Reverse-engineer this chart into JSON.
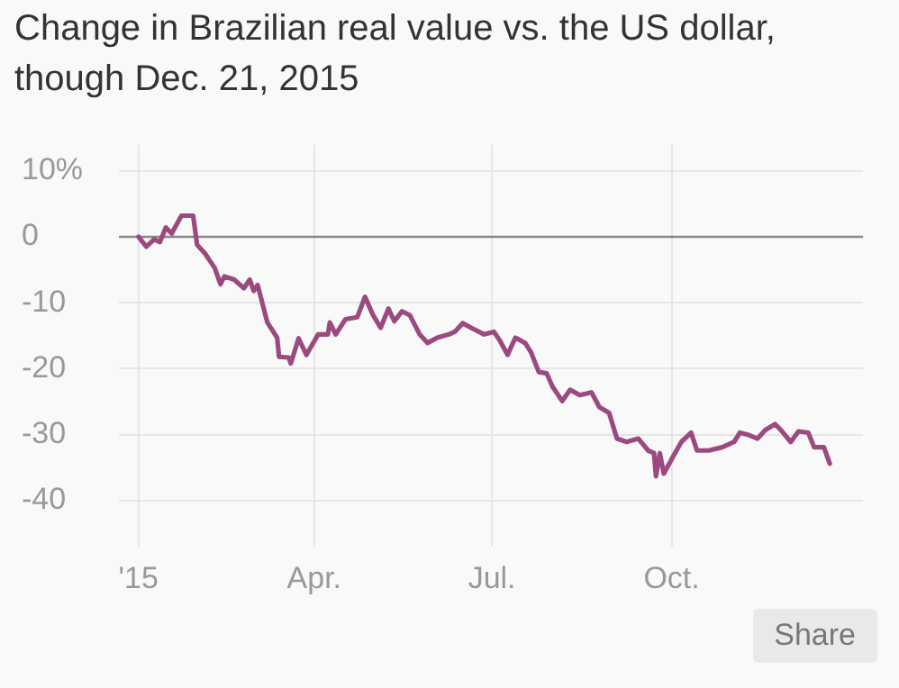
{
  "chart_data": {
    "type": "line",
    "title": "Change in Brazilian real value vs. the US dollar, though Dec. 21, 2015",
    "x": [
      "2015-01-01",
      "2015-01-05",
      "2015-01-09",
      "2015-01-12",
      "2015-01-15",
      "2015-01-18",
      "2015-01-23",
      "2015-01-29",
      "2015-01-31",
      "2015-02-04",
      "2015-02-09",
      "2015-02-12",
      "2015-02-14",
      "2015-02-19",
      "2015-02-24",
      "2015-02-27",
      "2015-03-01",
      "2015-03-03",
      "2015-03-08",
      "2015-03-13",
      "2015-03-14",
      "2015-03-19",
      "2015-03-20",
      "2015-03-24",
      "2015-03-28",
      "2015-04-03",
      "2015-04-08",
      "2015-04-09",
      "2015-04-12",
      "2015-04-17",
      "2015-04-23",
      "2015-04-27",
      "2015-05-01",
      "2015-05-05",
      "2015-05-09",
      "2015-05-12",
      "2015-05-16",
      "2015-05-20",
      "2015-05-25",
      "2015-05-29",
      "2015-06-03",
      "2015-06-09",
      "2015-06-12",
      "2015-06-16",
      "2015-06-21",
      "2015-06-27",
      "2015-07-02",
      "2015-07-05",
      "2015-07-09",
      "2015-07-13",
      "2015-07-18",
      "2015-07-21",
      "2015-07-25",
      "2015-07-29",
      "2015-08-01",
      "2015-08-06",
      "2015-08-10",
      "2015-08-15",
      "2015-08-21",
      "2015-08-25",
      "2015-08-30",
      "2015-09-03",
      "2015-09-08",
      "2015-09-14",
      "2015-09-19",
      "2015-09-22",
      "2015-09-23",
      "2015-09-25",
      "2015-09-27",
      "2015-10-02",
      "2015-10-06",
      "2015-10-11",
      "2015-10-14",
      "2015-10-20",
      "2015-10-27",
      "2015-11-02",
      "2015-11-05",
      "2015-11-09",
      "2015-11-14",
      "2015-11-18",
      "2015-11-23",
      "2015-11-26",
      "2015-12-01",
      "2015-12-05",
      "2015-12-10",
      "2015-12-13",
      "2015-12-18",
      "2015-12-21"
    ],
    "series": [
      {
        "color": "#9b4a7f",
        "values": [
          0,
          -1.5,
          -0.4,
          -0.8,
          1.4,
          0.5,
          3.2,
          3.2,
          -1.2,
          -2.5,
          -4.7,
          -7.2,
          -6,
          -6.5,
          -7.8,
          -6.5,
          -8.2,
          -7.3,
          -13,
          -15.3,
          -18.2,
          -18.3,
          -19.2,
          -15.4,
          -17.9,
          -14.8,
          -14.8,
          -13,
          -14.8,
          -12.5,
          -12.2,
          -9.1,
          -11.8,
          -13.8,
          -10.9,
          -12.8,
          -11.3,
          -11.9,
          -14.8,
          -16.1,
          -15.3,
          -14.8,
          -14.4,
          -13.1,
          -13.9,
          -14.8,
          -14.4,
          -15.7,
          -17.9,
          -15.3,
          -16.1,
          -17.5,
          -20.5,
          -20.7,
          -22.7,
          -24.9,
          -23.2,
          -24,
          -23.6,
          -25.8,
          -26.7,
          -30.6,
          -31.1,
          -30.6,
          -32.4,
          -32.8,
          -36.3,
          -32.8,
          -35.9,
          -33.2,
          -31.1,
          -29.7,
          -32.4,
          -32.4,
          -31.9,
          -31.1,
          -29.7,
          -30,
          -30.6,
          -29.3,
          -28.4,
          -29.3,
          -31.1,
          -29.5,
          -29.7,
          -31.9,
          -31.9,
          -34.4
        ]
      }
    ],
    "xlim": [
      "2014-12-22",
      "2016-01-07"
    ],
    "xticks": [
      {
        "value": "2015-01-01",
        "label": "'15"
      },
      {
        "value": "2015-04-01",
        "label": "Apr."
      },
      {
        "value": "2015-07-01",
        "label": "Jul."
      },
      {
        "value": "2015-10-01",
        "label": "Oct."
      }
    ],
    "ylim": [
      -47,
      14
    ],
    "yticks": [
      {
        "value": 10,
        "label": "10%"
      },
      0,
      -10,
      -20,
      -30,
      -40
    ],
    "ref_lines": [
      {
        "axis": "y",
        "value": 0,
        "color": "#888888"
      }
    ],
    "grid": true,
    "legend": false,
    "marker": "none",
    "line_style": "solid",
    "annotations": [
      "Share"
    ]
  }
}
